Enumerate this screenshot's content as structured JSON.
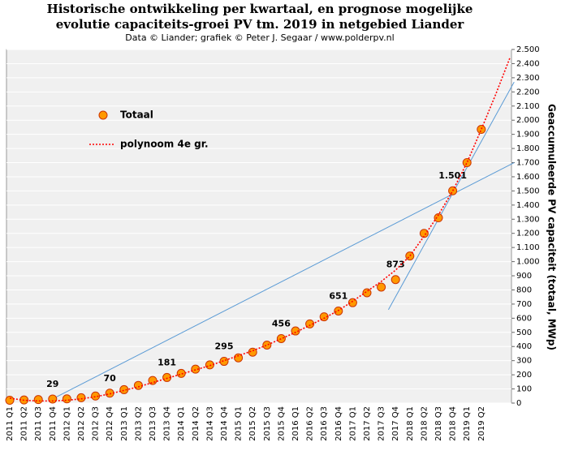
{
  "chart_data": {
    "type": "scatter",
    "title": [
      "Historische  ontwikkeling  per kwartaal, en prognose mogelijke",
      "evolutie  capaciteits-groei  PV tm. 2019 in netgebied Liander"
    ],
    "subtitle": "Data © Liander; grafiek © Peter J. Segaar / www.polderpv.nl",
    "y_label": "Geaccumuleerde  PV  capaciteit  (totaal,  MWp)",
    "categories": [
      "2011 Q1",
      "2011 Q2",
      "2011 Q3",
      "2011 Q4",
      "2012 Q1",
      "2012 Q2",
      "2012 Q3",
      "2012 Q4",
      "2013 Q1",
      "2013 Q2",
      "2013 Q3",
      "2013 Q4",
      "2014 Q1",
      "2014 Q2",
      "2014 Q3",
      "2014 Q4",
      "2015 Q1",
      "2015 Q2",
      "2015 Q3",
      "2015 Q4",
      "2016 Q1",
      "2016 Q2",
      "2016 Q3",
      "2016 Q4",
      "2017 Q1",
      "2017 Q2",
      "2017 Q3",
      "2017 Q4",
      "2018 Q1",
      "2018 Q2",
      "2018 Q3",
      "2018 Q4",
      "2019 Q1",
      "2019 Q2",
      null,
      null
    ],
    "series": [
      {
        "name": "Totaal",
        "color": "#ff9900",
        "edge": "#cc3300",
        "style": "marker",
        "values": [
          20,
          22,
          25,
          29,
          30,
          38,
          50,
          70,
          95,
          125,
          160,
          181,
          210,
          240,
          270,
          295,
          320,
          360,
          410,
          456,
          510,
          560,
          610,
          651,
          710,
          780,
          820,
          873,
          1040,
          1200,
          1310,
          1501,
          1700,
          1935,
          null,
          null
        ],
        "value_labels": [
          null,
          null,
          null,
          "29",
          null,
          null,
          null,
          "70",
          null,
          null,
          null,
          "181",
          null,
          null,
          null,
          "295",
          null,
          null,
          null,
          "456",
          null,
          null,
          null,
          "651",
          null,
          null,
          null,
          "873",
          null,
          null,
          null,
          "1.501",
          null,
          null,
          null,
          null
        ]
      },
      {
        "name": "polynoom 4e gr.",
        "color": "#ff0000",
        "style": "dotted",
        "values": [
          35,
          20,
          15,
          15,
          20,
          30,
          45,
          65,
          90,
          115,
          145,
          175,
          205,
          235,
          265,
          300,
          335,
          370,
          410,
          455,
          500,
          550,
          600,
          655,
          720,
          790,
          860,
          940,
          1040,
          1180,
          1330,
          1500,
          1700,
          1935,
          2180,
          2440
        ]
      }
    ],
    "reference_lines": [
      {
        "color": "#5b9bd5",
        "x": [
          3,
          35.3
        ],
        "y": [
          30,
          1700
        ]
      },
      {
        "color": "#5b9bd5",
        "x": [
          26.5,
          35.3
        ],
        "y": [
          660,
          2270
        ]
      }
    ],
    "ylim": [
      0,
      2500
    ],
    "yticks": [
      0,
      100,
      200,
      300,
      400,
      500,
      600,
      700,
      800,
      900,
      {
        "value": 1000,
        "label": "1.000"
      },
      {
        "value": 1100,
        "label": "1.100"
      },
      {
        "value": 1200,
        "label": "1.200"
      },
      {
        "value": 1300,
        "label": "1.300"
      },
      {
        "value": 1400,
        "label": "1.400"
      },
      {
        "value": 1500,
        "label": "1.500"
      },
      {
        "value": 1600,
        "label": "1.600"
      },
      {
        "value": 1700,
        "label": "1.700"
      },
      {
        "value": 1800,
        "label": "1.800"
      },
      {
        "value": 1900,
        "label": "1.900"
      },
      {
        "value": 2000,
        "label": "2.000"
      },
      {
        "value": 2100,
        "label": "2.100"
      },
      {
        "value": 2200,
        "label": "2.200"
      },
      {
        "value": 2300,
        "label": "2.300"
      },
      {
        "value": 2400,
        "label": "2.400"
      },
      {
        "value": 2500,
        "label": "2.500"
      }
    ],
    "grid": true
  }
}
